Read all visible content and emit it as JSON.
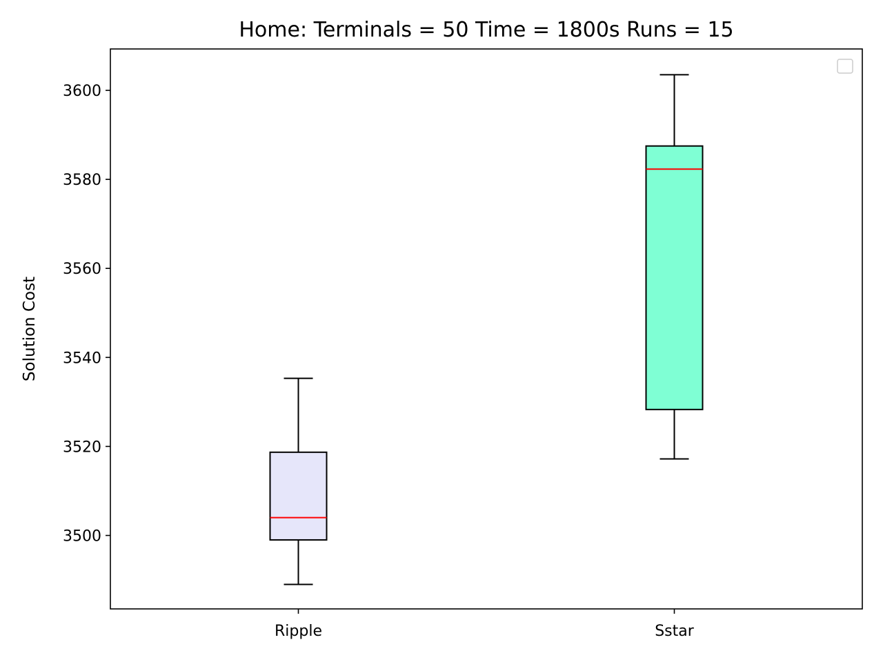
{
  "chart_data": {
    "type": "boxplot",
    "title": "Home:  Terminals = 50  Time = 1800s  Runs = 15",
    "ylabel": "Solution Cost",
    "xlabel": "",
    "ylim": [
      3483.5,
      3609.3
    ],
    "yticks": [
      3500,
      3520,
      3540,
      3560,
      3580,
      3600
    ],
    "categories": [
      "Ripple",
      "Sstar"
    ],
    "series": [
      {
        "category": "Ripple",
        "whisker_low": 3489,
        "q1": 3499,
        "median": 3504,
        "q3": 3518.7,
        "whisker_high": 3535.3,
        "fill": "#e6e6fa"
      },
      {
        "category": "Sstar",
        "whisker_low": 3517.2,
        "q1": 3528.3,
        "median": 3582.3,
        "q3": 3587.5,
        "whisker_high": 3603.5,
        "fill": "#7fffd4"
      }
    ],
    "median_color": "#ff0000",
    "legend": {
      "placement": "top-right",
      "entries": []
    },
    "grid": false
  }
}
